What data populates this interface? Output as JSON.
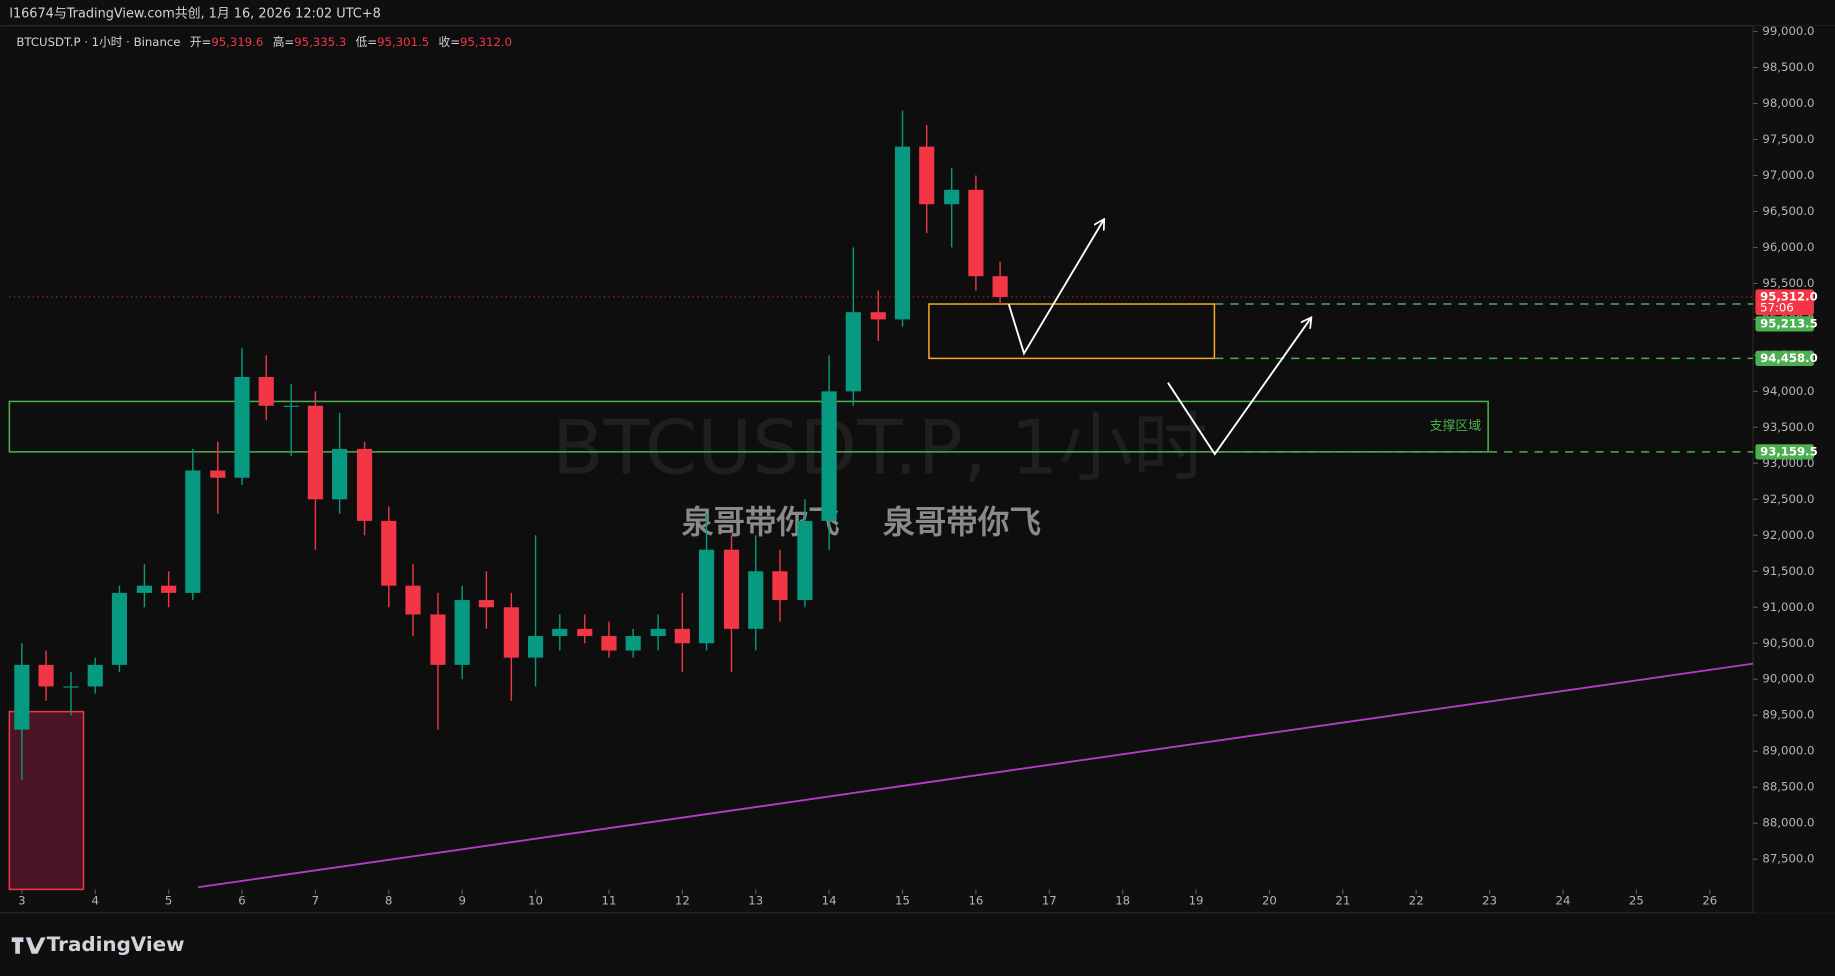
{
  "top_bar": "l16674与TradingView.com共创, 1月 16, 2026 12:02 UTC+8",
  "brand": "TradingView",
  "chart_data": {
    "type": "candlestick",
    "symbol_line": "BTCUSDT.P · 1小时 · Binance",
    "ohlc_legend": [
      {
        "name": "开=",
        "value": 95319.6,
        "label": "95,319.6"
      },
      {
        "name": "高=",
        "value": 95335.3,
        "label": "95,335.3"
      },
      {
        "name": "低=",
        "value": 95301.5,
        "label": "95,301.5"
      },
      {
        "name": "收=",
        "value": 95312.0,
        "label": "95,312.0"
      }
    ],
    "watermark": "BTCUSDT.P, 1小时",
    "overlay_text": [
      "泉哥带你飞",
      "泉哥带你飞"
    ],
    "zone_label": "支撑区域",
    "up_color": "#089981",
    "down_color": "#f23645",
    "x": [
      3,
      3.33,
      3.67,
      4,
      4.33,
      4.67,
      5,
      5.33,
      5.67,
      6,
      6.33,
      6.67,
      7,
      7.33,
      7.67,
      8,
      8.33,
      8.67,
      9,
      9.33,
      9.67,
      10,
      10.33,
      10.67,
      11,
      11.33,
      11.67,
      12,
      12.33,
      12.67,
      13,
      13.33,
      13.67,
      14,
      14.33,
      14.67,
      15,
      15.33,
      15.67,
      16,
      16.33
    ],
    "open": [
      89300,
      90200,
      89900,
      89900,
      90200,
      91200,
      91300,
      91200,
      92900,
      92800,
      94200,
      93800,
      93800,
      92500,
      93200,
      92200,
      91300,
      90900,
      90200,
      91100,
      91000,
      90300,
      90600,
      90700,
      90600,
      90400,
      90600,
      90700,
      90500,
      91800,
      90700,
      91500,
      91100,
      92200,
      94000,
      95100,
      95000,
      97400,
      96600,
      96800,
      95600
    ],
    "high": [
      90500,
      90400,
      90100,
      90300,
      91300,
      91600,
      91500,
      93200,
      93300,
      94600,
      94500,
      94100,
      94000,
      93700,
      93300,
      92400,
      91600,
      91200,
      91300,
      91500,
      91200,
      92000,
      90900,
      90900,
      90800,
      90700,
      90900,
      91200,
      92300,
      92000,
      92000,
      91800,
      92500,
      94500,
      96000,
      95400,
      97900,
      97700,
      97100,
      97000,
      95800
    ],
    "low": [
      88600,
      89700,
      89500,
      89800,
      90100,
      91000,
      91000,
      91100,
      92300,
      92700,
      93600,
      93100,
      91800,
      92300,
      92000,
      91000,
      90600,
      89300,
      90000,
      90700,
      89700,
      89900,
      90400,
      90500,
      90300,
      90300,
      90400,
      90100,
      90400,
      90100,
      90400,
      90800,
      91000,
      91800,
      93800,
      94700,
      94900,
      96200,
      96000,
      95400,
      95200
    ],
    "close": [
      90200,
      89900,
      89900,
      90200,
      91200,
      91300,
      91200,
      92900,
      92800,
      94200,
      93800,
      93800,
      92500,
      93200,
      92200,
      91300,
      90900,
      90200,
      91100,
      91000,
      90300,
      90600,
      90700,
      90600,
      90400,
      90600,
      90700,
      90500,
      91800,
      90700,
      91500,
      91100,
      92200,
      94000,
      95100,
      95000,
      97400,
      96600,
      96800,
      95600,
      95312
    ],
    "xlim": [
      2.83,
      26.59
    ],
    "xticks": [
      3,
      4,
      5,
      6,
      7,
      8,
      9,
      10,
      11,
      12,
      13,
      14,
      15,
      16,
      17,
      18,
      19,
      20,
      21,
      22,
      23,
      24,
      25,
      26
    ],
    "ylim": [
      87080,
      99080
    ],
    "yticks": [
      {
        "value": 87500,
        "label": "87,500.0"
      },
      {
        "value": 88000,
        "label": "88,000.0"
      },
      {
        "value": 88500,
        "label": "88,500.0"
      },
      {
        "value": 89000,
        "label": "89,000.0"
      },
      {
        "value": 89500,
        "label": "89,500.0"
      },
      {
        "value": 90000,
        "label": "90,000.0"
      },
      {
        "value": 90500,
        "label": "90,500.0"
      },
      {
        "value": 91000,
        "label": "91,000.0"
      },
      {
        "value": 91500,
        "label": "91,500.0"
      },
      {
        "value": 92000,
        "label": "92,000.0"
      },
      {
        "value": 92500,
        "label": "92,500.0"
      },
      {
        "value": 93000,
        "label": "93,000.0"
      },
      {
        "value": 93500,
        "label": "93,500.0"
      },
      {
        "value": 94000,
        "label": "94,000.0"
      },
      {
        "value": 94500,
        "label": "94,500.0"
      },
      {
        "value": 95000,
        "label": "95,000.0"
      },
      {
        "value": 95500,
        "label": "95,500.0"
      },
      {
        "value": 96000,
        "label": "96,000.0"
      },
      {
        "value": 96500,
        "label": "96,500.0"
      },
      {
        "value": 97000,
        "label": "97,000.0"
      },
      {
        "value": 97500,
        "label": "97,500.0"
      },
      {
        "value": 98000,
        "label": "98,000.0"
      },
      {
        "value": 98500,
        "label": "98,500.0"
      },
      {
        "value": 99000,
        "label": "99,000.0"
      }
    ],
    "price_labels": [
      {
        "value": 95312.0,
        "label": "95,312.0",
        "sub": "57:06",
        "color": "#f23645"
      },
      {
        "value": 95213.5,
        "label": "95,213.5",
        "color": "#4caf50"
      },
      {
        "value": 94458.0,
        "label": "94,458.0",
        "color": "#4caf50"
      },
      {
        "value": 93159.5,
        "label": "93,159.5",
        "color": "#4caf50"
      }
    ],
    "zones": [
      {
        "x": [
          15.36,
          19.25
        ],
        "y": [
          94458,
          95213.5
        ],
        "color": "#f5a623",
        "fill": "none"
      },
      {
        "x": [
          2.83,
          22.98
        ],
        "y": [
          93159.5,
          93860
        ],
        "color": "#4caf50",
        "fill": "none"
      },
      {
        "x": [
          2.83,
          3.84
        ],
        "y": [
          87080,
          89550
        ],
        "color": "#f23645",
        "fill": "#4a1424"
      }
    ],
    "levels": [
      {
        "price": 95213.5,
        "from": 19.26,
        "color": "#4caf50"
      },
      {
        "price": 94458,
        "from": 19.26,
        "color": "#4caf50"
      },
      {
        "price": 93159.5,
        "from": 19.26,
        "color": "#4caf50"
      }
    ],
    "trendline": {
      "x": [
        5.4,
        26.59
      ],
      "y": [
        87110,
        90217
      ],
      "color": "#b43cc8"
    }
  }
}
